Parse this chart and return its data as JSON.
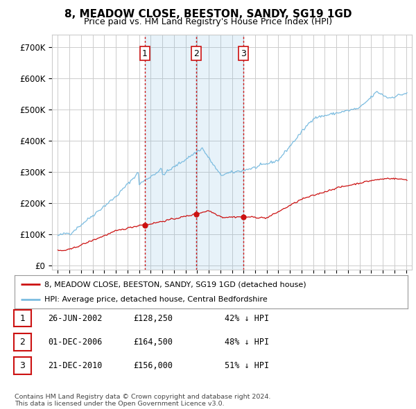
{
  "title": "8, MEADOW CLOSE, BEESTON, SANDY, SG19 1GD",
  "subtitle": "Price paid vs. HM Land Registry's House Price Index (HPI)",
  "yticks": [
    0,
    100000,
    200000,
    300000,
    400000,
    500000,
    600000,
    700000
  ],
  "ytick_labels": [
    "£0",
    "£100K",
    "£200K",
    "£300K",
    "£400K",
    "£500K",
    "£600K",
    "£700K"
  ],
  "xlim_start": 1994.5,
  "xlim_end": 2025.5,
  "ylim": [
    -15000,
    740000
  ],
  "hpi_color": "#7bbce0",
  "sale_color": "#cc1111",
  "sale_points": [
    {
      "year": 2002.487,
      "price": 128250,
      "label": "1"
    },
    {
      "year": 2006.917,
      "price": 164500,
      "label": "2"
    },
    {
      "year": 2010.972,
      "price": 156000,
      "label": "3"
    }
  ],
  "vline_color": "#cc1111",
  "table_rows": [
    {
      "num": "1",
      "date": "26-JUN-2002",
      "price": "£128,250",
      "pct": "42% ↓ HPI"
    },
    {
      "num": "2",
      "date": "01-DEC-2006",
      "price": "£164,500",
      "pct": "48% ↓ HPI"
    },
    {
      "num": "3",
      "date": "21-DEC-2010",
      "price": "£156,000",
      "pct": "51% ↓ HPI"
    }
  ],
  "legend_line1": "8, MEADOW CLOSE, BEESTON, SANDY, SG19 1GD (detached house)",
  "legend_line2": "HPI: Average price, detached house, Central Bedfordshire",
  "footnote": "Contains HM Land Registry data © Crown copyright and database right 2024.\nThis data is licensed under the Open Government Licence v3.0.",
  "background_color": "#ffffff",
  "grid_color": "#cccccc",
  "shade_color": "#ddeeff"
}
